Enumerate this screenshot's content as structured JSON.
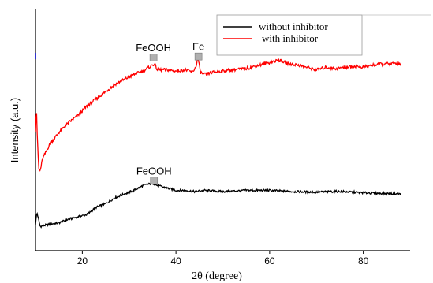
{
  "chart_data": {
    "type": "line",
    "title": "",
    "xlabel": "2θ (degree)",
    "ylabel": "Intensity (a.u.)",
    "xlim": [
      10,
      90
    ],
    "x_ticks": [
      20,
      40,
      60,
      80
    ],
    "x_tick_labels": [
      "20",
      "40",
      "60",
      "80"
    ],
    "y_ticks_shown": false,
    "y_units": "arbitrary (a.u.), normalized 0-100",
    "ylim": [
      0,
      100
    ],
    "grid": false,
    "legend": {
      "placement": "top-right",
      "entries": [
        {
          "label": "without inhibitor",
          "color": "#000000"
        },
        {
          "label": "with inhibitor",
          "color": "#ff0000"
        }
      ]
    },
    "series": [
      {
        "name": "without inhibitor",
        "color": "#000000",
        "points": [
          [
            10,
            11
          ],
          [
            10.3,
            16
          ],
          [
            11,
            10
          ],
          [
            13,
            11
          ],
          [
            15,
            11.5
          ],
          [
            17,
            13
          ],
          [
            19,
            14
          ],
          [
            21,
            15
          ],
          [
            23,
            18
          ],
          [
            25,
            19.5
          ],
          [
            27,
            22
          ],
          [
            29,
            23.5
          ],
          [
            31,
            25
          ],
          [
            33,
            27
          ],
          [
            35,
            28
          ],
          [
            36,
            27
          ],
          [
            38,
            26
          ],
          [
            40,
            25
          ],
          [
            42,
            25
          ],
          [
            44,
            24.5
          ],
          [
            46,
            25
          ],
          [
            50,
            24.5
          ],
          [
            55,
            25
          ],
          [
            60,
            25
          ],
          [
            65,
            24.5
          ],
          [
            70,
            24.3
          ],
          [
            75,
            24.6
          ],
          [
            80,
            24
          ],
          [
            85,
            23.7
          ],
          [
            88,
            23.5
          ]
        ]
      },
      {
        "name": "with inhibitor",
        "color": "#ff0000",
        "points": [
          [
            10,
            50
          ],
          [
            10.2,
            60
          ],
          [
            10.4,
            46
          ],
          [
            10.7,
            34
          ],
          [
            11,
            33
          ],
          [
            11.5,
            38
          ],
          [
            13,
            44
          ],
          [
            15,
            49
          ],
          [
            17,
            53
          ],
          [
            19,
            56
          ],
          [
            21,
            60
          ],
          [
            23,
            63
          ],
          [
            25,
            66
          ],
          [
            27,
            69
          ],
          [
            29,
            71
          ],
          [
            31,
            73
          ],
          [
            33,
            74.5
          ],
          [
            35,
            77
          ],
          [
            35.4,
            77.5
          ],
          [
            36,
            75
          ],
          [
            38,
            75
          ],
          [
            40,
            74.5
          ],
          [
            42,
            75
          ],
          [
            43.5,
            74
          ],
          [
            44.2,
            76
          ],
          [
            44.7,
            80
          ],
          [
            45.2,
            74
          ],
          [
            46,
            73
          ],
          [
            48,
            74
          ],
          [
            50,
            74.5
          ],
          [
            52,
            75
          ],
          [
            55,
            75.5
          ],
          [
            58,
            77
          ],
          [
            60,
            78
          ],
          [
            62,
            79
          ],
          [
            64,
            77.5
          ],
          [
            66,
            77
          ],
          [
            68,
            76
          ],
          [
            70,
            75
          ],
          [
            72,
            76
          ],
          [
            74,
            75.5
          ],
          [
            76,
            76
          ],
          [
            78,
            76.5
          ],
          [
            80,
            76
          ],
          [
            82,
            77
          ],
          [
            85,
            77.5
          ],
          [
            88,
            77.5
          ]
        ]
      }
    ],
    "annotations": [
      {
        "text": "FeOOH",
        "x": 35.2,
        "y": 80,
        "series": "with inhibitor",
        "marker_color": "#b0b0b0"
      },
      {
        "text": "Fe",
        "x": 44.8,
        "y": 80.5,
        "series": "with inhibitor",
        "marker_color": "#b0b0b0"
      },
      {
        "text": "FeOOH",
        "x": 35.3,
        "y": 29,
        "series": "without inhibitor",
        "marker_color": "#b0b0b0"
      }
    ]
  }
}
